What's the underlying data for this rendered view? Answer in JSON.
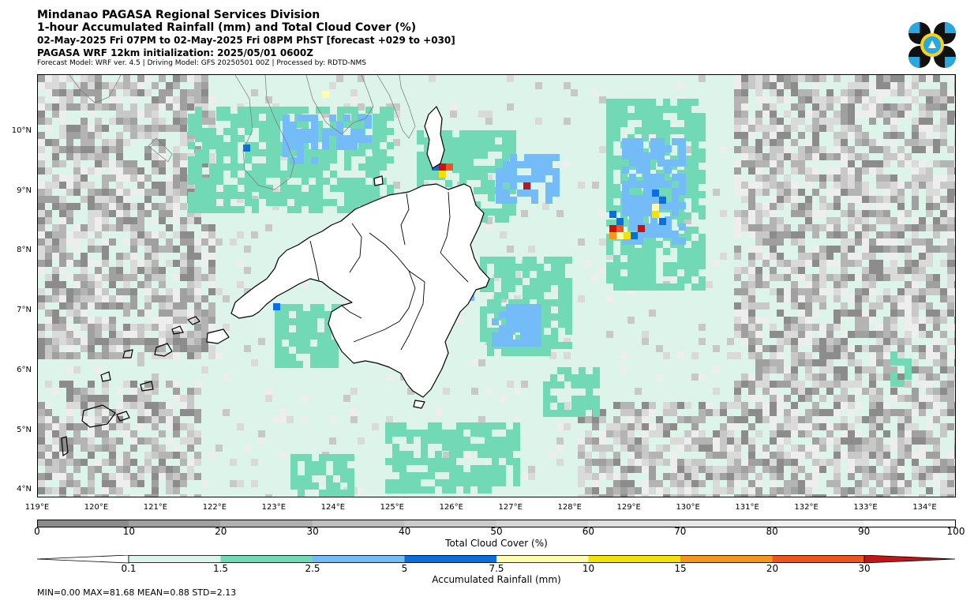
{
  "header": {
    "line1": "Mindanao PAGASA Regional Services Division",
    "line2": "1-hour Accumulated Rainfall (mm) and Total Cloud Cover (%)",
    "line3": "02-May-2025 Fri 07PM to 02-May-2025 Fri 08PM PhST [forecast +029 to +030]",
    "line4": "PAGASA WRF 12km initialization: 2025/05/01 0600Z",
    "line5": "Forecast Model: WRF ver. 4.5 | Driving Model: GFS 20250501 00Z | Processed by: RDTD-NMS"
  },
  "map": {
    "lon_range": [
      119,
      134.5
    ],
    "lat_range": [
      3.9,
      10.95
    ],
    "lat_labels": [
      "10°N",
      "9°N",
      "8°N",
      "7°N",
      "6°N",
      "5°N",
      "4°N"
    ],
    "lat_values": [
      10,
      9,
      8,
      7,
      6,
      5,
      4
    ],
    "lon_labels": [
      "119°E",
      "120°E",
      "121°E",
      "122°E",
      "123°E",
      "124°E",
      "125°E",
      "126°E",
      "127°E",
      "128°E",
      "129°E",
      "130°E",
      "131°E",
      "132°E",
      "133°E",
      "134°E"
    ],
    "lon_values": [
      119,
      120,
      121,
      122,
      123,
      124,
      125,
      126,
      127,
      128,
      129,
      130,
      131,
      132,
      133,
      134
    ]
  },
  "cloud_colorbar": {
    "title": "Total Cloud Cover (%)",
    "ticks": [
      "0",
      "10",
      "20",
      "30",
      "40",
      "50",
      "60",
      "70",
      "80",
      "90",
      "100"
    ],
    "tick_values": [
      0,
      10,
      20,
      30,
      40,
      50,
      60,
      70,
      80,
      90,
      100
    ],
    "colors": [
      "#8c8c8c",
      "#a0a0a0",
      "#b0b0b0",
      "#c0c0c0",
      "#cccccc",
      "#d6d6d6",
      "#e0e0e0",
      "#e8e8e8",
      "#f0f0f0",
      "#fafafa"
    ]
  },
  "rain_colorbar": {
    "title": "Accumulated Rainfall (mm)",
    "ticks": [
      "0.1",
      "1.5",
      "2.5",
      "5",
      "7.5",
      "10",
      "15",
      "20",
      "30"
    ],
    "colors": [
      "#dcf4ea",
      "#72d9b6",
      "#74bcf7",
      "#0a6fdc",
      "#fffcb0",
      "#f2e10a",
      "#f5961c",
      "#f0541e",
      "#c21616"
    ]
  },
  "stats": "MIN=0.00   MAX=81.68   MEAN=0.88   STD=2.13"
}
